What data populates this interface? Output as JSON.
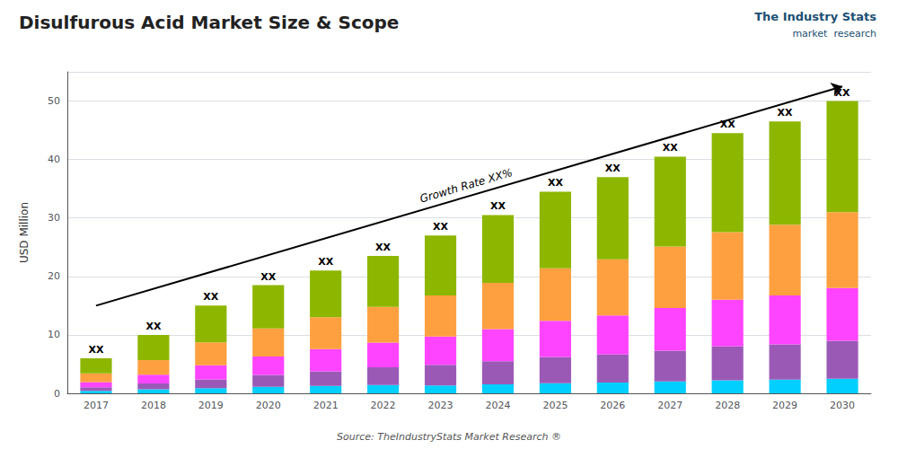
{
  "chart_data": {
    "type": "bar",
    "stacked": true,
    "title": "Disulfurous Acid Market Size & Scope",
    "ylabel": "USD Million",
    "categories": [
      "2017",
      "2018",
      "2019",
      "2020",
      "2021",
      "2022",
      "2023",
      "2024",
      "2025",
      "2026",
      "2027",
      "2028",
      "2029",
      "2030"
    ],
    "series": [
      {
        "color": "#00CFFF",
        "values": [
          0.42,
          0.7,
          0.9,
          1.11,
          1.26,
          1.41,
          1.35,
          1.525,
          1.725,
          1.85,
          2.025,
          2.225,
          2.325,
          2.5
        ]
      },
      {
        "color": "#9B59B6",
        "values": [
          0.6,
          1,
          1.5,
          2.035,
          2.52,
          3.055,
          3.51,
          3.965,
          4.485,
          4.81,
          5.265,
          5.785,
          6.045,
          6.5
        ]
      },
      {
        "color": "#FF44FF",
        "values": [
          0.9,
          1.5,
          2.4,
          3.145,
          3.78,
          4.23,
          4.86,
          5.49,
          6.21,
          6.66,
          7.29,
          8.01,
          8.37,
          9
        ]
      },
      {
        "color": "#FFA040",
        "values": [
          1.5,
          2.5,
          3.9,
          4.81,
          5.46,
          6.11,
          7.02,
          7.93,
          8.97,
          9.62,
          10.53,
          11.57,
          12.09,
          13
        ]
      },
      {
        "color": "#8DB600",
        "values": [
          2.58,
          4.3,
          6.3,
          7.4,
          7.98,
          8.695,
          10.26,
          11.59,
          13.11,
          14.06,
          15.39,
          16.91,
          17.67,
          19
        ]
      }
    ],
    "ylim": [
      0,
      55
    ],
    "yticks": [
      0,
      10,
      20,
      30,
      40,
      50
    ],
    "grid": true,
    "annotations": [
      {
        "text": "XX",
        "x": "2017"
      },
      {
        "text": "XX",
        "x": "2018"
      },
      {
        "text": "XX",
        "x": "2019"
      },
      {
        "text": "XX",
        "x": "2020"
      },
      {
        "text": "XX",
        "x": "2021"
      },
      {
        "text": "XX",
        "x": "2022"
      },
      {
        "text": "XX",
        "x": "2023"
      },
      {
        "text": "XX",
        "x": "2024"
      },
      {
        "text": "XX",
        "x": "2025"
      },
      {
        "text": "XX",
        "x": "2026"
      },
      {
        "text": "XX",
        "x": "2027"
      },
      {
        "text": "XX",
        "x": "2028"
      },
      {
        "text": "XX",
        "x": "2029"
      },
      {
        "text": "XX",
        "x": "2030"
      },
      {
        "text": "Growth Rate XX%",
        "arrow_from": [
          "2017",
          15
        ],
        "arrow_to": [
          "2030",
          52.5
        ]
      }
    ],
    "source": "Source: TheIndustryStats Market Research ®",
    "logo_text": [
      "The Industry Stats",
      "market  research"
    ]
  }
}
